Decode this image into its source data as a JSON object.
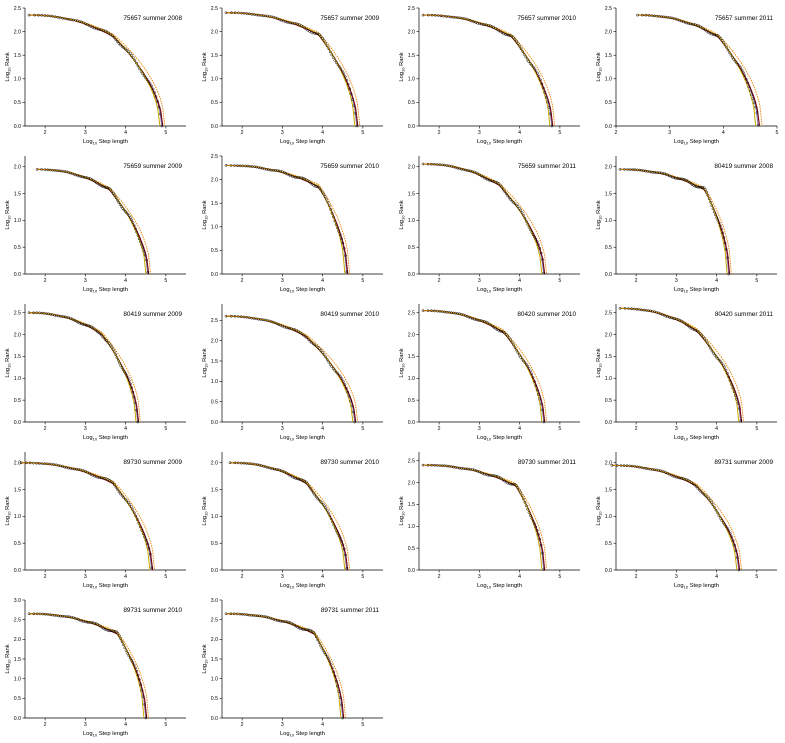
{
  "colors": {
    "points": "#000000",
    "fit_dark": "#7a0010",
    "fit_gold": "#c9a800",
    "fit_orange": "#e88000",
    "fit_grey": "#7070a0"
  },
  "axis_text": {
    "ylabel_main": "Log",
    "ylabel_sub": "10",
    "ylabel_tail": " Rank",
    "xlabel_main": "Log",
    "xlabel_sub": "10",
    "xlabel_tail": " Step length"
  },
  "chart_data": [
    {
      "type": "scatter",
      "title": "75657 summer 2008",
      "xlim": [
        1.5,
        5.5
      ],
      "xticks": [
        "2",
        "3",
        "4",
        "5"
      ],
      "ylim": [
        0,
        2.5
      ],
      "yticks": [
        "0.0",
        "0.5",
        "1.0",
        "1.5",
        "2.0",
        "2.5"
      ],
      "top": 2.35,
      "xmin": 1.6,
      "knee": 3.7,
      "xmax": 4.9
    },
    {
      "type": "scatter",
      "title": "75657 summer 2009",
      "xlim": [
        1.5,
        5.5
      ],
      "xticks": [
        "2",
        "3",
        "4",
        "5"
      ],
      "ylim": [
        0,
        2.5
      ],
      "yticks": [
        "0.0",
        "0.5",
        "1.0",
        "1.5",
        "2.0",
        "2.5"
      ],
      "top": 2.4,
      "xmin": 1.6,
      "knee": 3.9,
      "xmax": 4.85
    },
    {
      "type": "scatter",
      "title": "75657 summer 2010",
      "xlim": [
        1.5,
        5.5
      ],
      "xticks": [
        "2",
        "3",
        "4",
        "5"
      ],
      "ylim": [
        0,
        2.5
      ],
      "yticks": [
        "0.0",
        "0.5",
        "1.0",
        "1.5",
        "2.0",
        "2.5"
      ],
      "top": 2.35,
      "xmin": 1.6,
      "knee": 3.8,
      "xmax": 4.8
    },
    {
      "type": "scatter",
      "title": "75657 summer 2011",
      "xlim": [
        2,
        5
      ],
      "xticks": [
        "2",
        "3",
        "4",
        "5"
      ],
      "ylim": [
        0,
        2.5
      ],
      "yticks": [
        "0.0",
        "0.5",
        "1.0",
        "1.5",
        "2.0",
        "2.5"
      ],
      "top": 2.35,
      "xmin": 2.4,
      "knee": 3.9,
      "xmax": 4.65
    },
    {
      "type": "scatter",
      "title": "75659 summer 2009",
      "xlim": [
        1.5,
        5.5
      ],
      "xticks": [
        "2",
        "3",
        "4",
        "5"
      ],
      "ylim": [
        0,
        2.2
      ],
      "yticks": [
        "0.0",
        "0.5",
        "1.0",
        "1.5",
        "2.0"
      ],
      "top": 1.95,
      "xmin": 1.8,
      "knee": 3.6,
      "xmax": 4.55
    },
    {
      "type": "scatter",
      "title": "75659 summer 2010",
      "xlim": [
        1.5,
        5.5
      ],
      "xticks": [
        "2",
        "3",
        "4",
        "5"
      ],
      "ylim": [
        0,
        2.5
      ],
      "yticks": [
        "0.0",
        "0.5",
        "1.0",
        "1.5",
        "2.0",
        "2.5"
      ],
      "top": 2.3,
      "xmin": 1.6,
      "knee": 3.9,
      "xmax": 4.6
    },
    {
      "type": "scatter",
      "title": "75659 summer 2011",
      "xlim": [
        1.5,
        5.5
      ],
      "xticks": [
        "2",
        "3",
        "4",
        "5"
      ],
      "ylim": [
        0,
        2.2
      ],
      "yticks": [
        "0.0",
        "0.5",
        "1.0",
        "1.5",
        "2.0"
      ],
      "top": 2.05,
      "xmin": 1.6,
      "knee": 3.5,
      "xmax": 4.6
    },
    {
      "type": "scatter",
      "title": "80419 summer 2008",
      "xlim": [
        1.5,
        5.5
      ],
      "xticks": [
        "2",
        "3",
        "4",
        "5"
      ],
      "ylim": [
        0,
        2.2
      ],
      "yticks": [
        "0.0",
        "0.5",
        "1.0",
        "1.5",
        "2.0"
      ],
      "top": 1.95,
      "xmin": 1.6,
      "knee": 3.7,
      "xmax": 4.3
    },
    {
      "type": "scatter",
      "title": "80419 summer 2009",
      "xlim": [
        1.5,
        5.5
      ],
      "xticks": [
        "2",
        "3",
        "4",
        "5"
      ],
      "ylim": [
        0,
        2.7
      ],
      "yticks": [
        "0.0",
        "0.5",
        "1.0",
        "1.5",
        "2.0",
        "2.5"
      ],
      "top": 2.5,
      "xmin": 1.6,
      "knee": 3.4,
      "xmax": 4.3
    },
    {
      "type": "scatter",
      "title": "80419 summer 2010",
      "xlim": [
        1.5,
        5.5
      ],
      "xticks": [
        "2",
        "3",
        "4",
        "5"
      ],
      "ylim": [
        0,
        2.9
      ],
      "yticks": [
        "0.0",
        "0.5",
        "1.0",
        "1.5",
        "2.0",
        "2.5"
      ],
      "top": 2.6,
      "xmin": 1.6,
      "knee": 3.6,
      "xmax": 4.8
    },
    {
      "type": "scatter",
      "title": "80420 summer 2010",
      "xlim": [
        1.5,
        5.5
      ],
      "xticks": [
        "2",
        "3",
        "4",
        "5"
      ],
      "ylim": [
        0,
        2.7
      ],
      "yticks": [
        "0.0",
        "0.5",
        "1.0",
        "1.5",
        "2.0",
        "2.5"
      ],
      "top": 2.55,
      "xmin": 1.6,
      "knee": 3.6,
      "xmax": 4.6
    },
    {
      "type": "scatter",
      "title": "80420 summer 2011",
      "xlim": [
        1.5,
        5.5
      ],
      "xticks": [
        "2",
        "3",
        "4",
        "5"
      ],
      "ylim": [
        0,
        2.7
      ],
      "yticks": [
        "0.0",
        "0.5",
        "1.0",
        "1.5",
        "2.0",
        "2.5"
      ],
      "top": 2.6,
      "xmin": 1.6,
      "knee": 3.5,
      "xmax": 4.6
    },
    {
      "type": "scatter",
      "title": "89730 summer 2009",
      "xlim": [
        1.5,
        5.5
      ],
      "xticks": [
        "2",
        "3",
        "4",
        "5"
      ],
      "ylim": [
        0,
        2.2
      ],
      "yticks": [
        "0.0",
        "0.5",
        "1.0",
        "1.5",
        "2.0"
      ],
      "top": 2.0,
      "xmin": 1.4,
      "knee": 3.7,
      "xmax": 4.65
    },
    {
      "type": "scatter",
      "title": "89730 summer 2010",
      "xlim": [
        1.5,
        5.5
      ],
      "xticks": [
        "2",
        "3",
        "4",
        "5"
      ],
      "ylim": [
        0,
        2.2
      ],
      "yticks": [
        "0.0",
        "0.5",
        "1.0",
        "1.5",
        "2.0"
      ],
      "top": 2.0,
      "xmin": 1.7,
      "knee": 3.6,
      "xmax": 4.6
    },
    {
      "type": "scatter",
      "title": "89730 summer 2011",
      "xlim": [
        1.5,
        5.5
      ],
      "xticks": [
        "2",
        "3",
        "4",
        "5"
      ],
      "ylim": [
        0,
        2.7
      ],
      "yticks": [
        "0.0",
        "0.5",
        "1.0",
        "1.5",
        "2.0",
        "2.5"
      ],
      "top": 2.4,
      "xmin": 1.6,
      "knee": 3.9,
      "xmax": 4.6
    },
    {
      "type": "scatter",
      "title": "89731 summer 2009",
      "xlim": [
        1.5,
        5.5
      ],
      "xticks": [
        "2",
        "3",
        "4",
        "5"
      ],
      "ylim": [
        0,
        2.2
      ],
      "yticks": [
        "0.0",
        "0.5",
        "1.0",
        "1.5",
        "2.0"
      ],
      "top": 1.95,
      "xmin": 1.4,
      "knee": 3.5,
      "xmax": 4.55
    },
    {
      "type": "scatter",
      "title": "89731 summer 2010",
      "xlim": [
        1.5,
        5.5
      ],
      "xticks": [
        "2",
        "3",
        "4",
        "5"
      ],
      "ylim": [
        0,
        3.0
      ],
      "yticks": [
        "0.0",
        "0.5",
        "1.0",
        "1.5",
        "2.0",
        "2.5",
        "3.0"
      ],
      "top": 2.65,
      "xmin": 1.6,
      "knee": 3.8,
      "xmax": 4.5
    },
    {
      "type": "scatter",
      "title": "89731 summer 2011",
      "xlim": [
        1.5,
        5.5
      ],
      "xticks": [
        "2",
        "3",
        "4",
        "5"
      ],
      "ylim": [
        0,
        3.0
      ],
      "yticks": [
        "0.0",
        "0.5",
        "1.0",
        "1.5",
        "2.0",
        "2.5",
        "3.0"
      ],
      "top": 2.65,
      "xmin": 1.6,
      "knee": 3.8,
      "xmax": 4.5
    }
  ]
}
